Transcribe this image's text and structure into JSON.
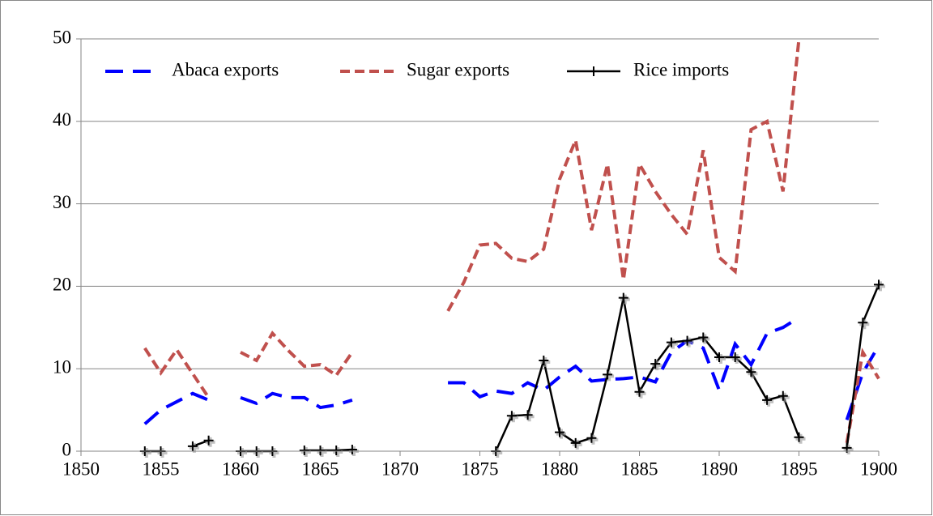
{
  "chart_data": {
    "type": "line",
    "x": [
      1854,
      1855,
      1856,
      1857,
      1858,
      1859,
      1860,
      1861,
      1862,
      1863,
      1864,
      1865,
      1866,
      1867,
      1868,
      1869,
      1870,
      1871,
      1872,
      1873,
      1874,
      1875,
      1876,
      1877,
      1878,
      1879,
      1880,
      1881,
      1882,
      1883,
      1884,
      1885,
      1886,
      1887,
      1888,
      1889,
      1890,
      1891,
      1892,
      1893,
      1894,
      1895,
      1896,
      1897,
      1898,
      1899,
      1900
    ],
    "series": [
      {
        "name": "Abaca exports",
        "color": "#0000ff",
        "values": [
          3.3,
          5.0,
          6.0,
          7.0,
          6.2,
          null,
          6.5,
          5.8,
          7.0,
          6.5,
          6.5,
          5.3,
          5.6,
          6.2,
          null,
          null,
          null,
          null,
          null,
          8.3,
          8.3,
          6.6,
          7.3,
          7.0,
          8.3,
          7.4,
          9.0,
          10.3,
          8.5,
          8.7,
          8.8,
          9.0,
          8.4,
          12.0,
          13.4,
          12.5,
          7.4,
          13.0,
          10.5,
          14.3,
          15.0,
          16.2,
          null,
          null,
          3.8,
          9.5,
          12.8
        ]
      },
      {
        "name": "Sugar exports",
        "color": "#c0504d",
        "values": [
          12.5,
          9.5,
          12.3,
          9.4,
          6.5,
          null,
          12.0,
          11.0,
          14.3,
          12.2,
          10.3,
          10.5,
          9.2,
          12.0,
          null,
          null,
          null,
          null,
          null,
          17.0,
          20.5,
          25.0,
          25.2,
          23.4,
          23.0,
          24.5,
          33.0,
          37.7,
          26.8,
          34.8,
          20.8,
          34.8,
          31.5,
          28.7,
          26.3,
          36.5,
          23.5,
          21.8,
          39.0,
          40.0,
          31.5,
          50.0,
          null,
          null,
          1.0,
          12.0,
          8.8
        ]
      },
      {
        "name": "Rice imports",
        "color": "#000000",
        "values": [
          0,
          0,
          null,
          0.6,
          1.3,
          null,
          0,
          0,
          0,
          null,
          0.1,
          0.1,
          0.1,
          0.2,
          null,
          null,
          null,
          null,
          null,
          null,
          null,
          null,
          0,
          4.3,
          4.4,
          11.0,
          2.3,
          1.0,
          1.6,
          9.3,
          18.6,
          7.2,
          10.6,
          13.2,
          13.4,
          13.8,
          11.4,
          11.4,
          9.6,
          6.2,
          6.7,
          1.7,
          null,
          null,
          0.4,
          15.6,
          20.2
        ]
      }
    ],
    "xlim": [
      1850,
      1900
    ],
    "xticks": [
      1850,
      1855,
      1860,
      1865,
      1870,
      1875,
      1880,
      1885,
      1890,
      1895,
      1900
    ],
    "ylim": [
      0,
      50
    ],
    "yticks": [
      0,
      10,
      20,
      30,
      40,
      50
    ],
    "grid": true,
    "legend": "top"
  }
}
